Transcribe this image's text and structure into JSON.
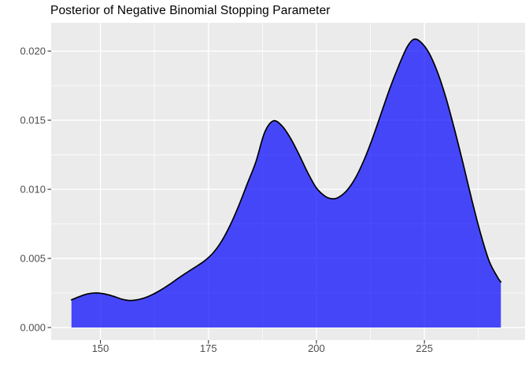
{
  "title": "Posterior of Negative Binomial Stopping Parameter",
  "chart_data": {
    "type": "area",
    "title": "Posterior of Negative Binomial Stopping Parameter",
    "xlabel": "",
    "ylabel": "",
    "xlim": [
      138.6,
      248.3
    ],
    "ylim": [
      -0.00091,
      0.02205
    ],
    "grid": "on",
    "legend": "none",
    "x_ticks": {
      "values": [
        150,
        175,
        200,
        225
      ],
      "labels": [
        "150",
        "175",
        "200",
        "225"
      ]
    },
    "y_ticks": {
      "values": [
        0,
        0.005,
        0.01,
        0.015,
        0.02
      ],
      "labels": [
        "0.000",
        "0.005",
        "0.010",
        "0.015",
        "0.020"
      ]
    },
    "x_tick_step": 25,
    "y_tick_step": 0.005,
    "baseline": 0,
    "peaks_note": "small bump ~0.0025 at x=149; local max 0.015 at x=190; local min 0.0093 at x=203.5; global max 0.021 at x=222.5; curve truncated at x=143.3 (h=0.002) and x=242.7 (h=0.0033)",
    "density": {
      "x": [
        143.3,
        145,
        147,
        149,
        151,
        153,
        155,
        156.5,
        158,
        160,
        162,
        164,
        166,
        168,
        170,
        172,
        174,
        176,
        178,
        180,
        182,
        184,
        186,
        188,
        190,
        192,
        194,
        196,
        198,
        200,
        202,
        203.5,
        205,
        207,
        209,
        211,
        213,
        215,
        217,
        219,
        221,
        222.5,
        224,
        226,
        228,
        230,
        232,
        234,
        236,
        238,
        240,
        242,
        242.7
      ],
      "y": [
        0.002,
        0.00222,
        0.00243,
        0.0025,
        0.00243,
        0.00226,
        0.00205,
        0.00196,
        0.00198,
        0.00212,
        0.00238,
        0.00272,
        0.00312,
        0.00356,
        0.00398,
        0.00438,
        0.0048,
        0.00537,
        0.00622,
        0.00738,
        0.0088,
        0.0104,
        0.012,
        0.0141,
        0.01495,
        0.0146,
        0.0137,
        0.0125,
        0.0112,
        0.0101,
        0.0095,
        0.00932,
        0.0094,
        0.0099,
        0.0108,
        0.0121,
        0.0137,
        0.0155,
        0.0173,
        0.0189,
        0.0203,
        0.02085,
        0.0207,
        0.0199,
        0.0185,
        0.0166,
        0.0143,
        0.0118,
        0.0092,
        0.0068,
        0.0048,
        0.0036,
        0.0033
      ]
    },
    "colors": {
      "panel_background": "#EBEBEB",
      "grid_major": "#FFFFFF",
      "grid_minor": "#FFFFFF",
      "fill": "#0000FF",
      "fill_opacity": 0.7,
      "line": "#000000",
      "tick_text": "#4D4D4D",
      "tick_mark": "#333333",
      "title_text": "#000000",
      "page_background": "#FFFFFF"
    }
  }
}
